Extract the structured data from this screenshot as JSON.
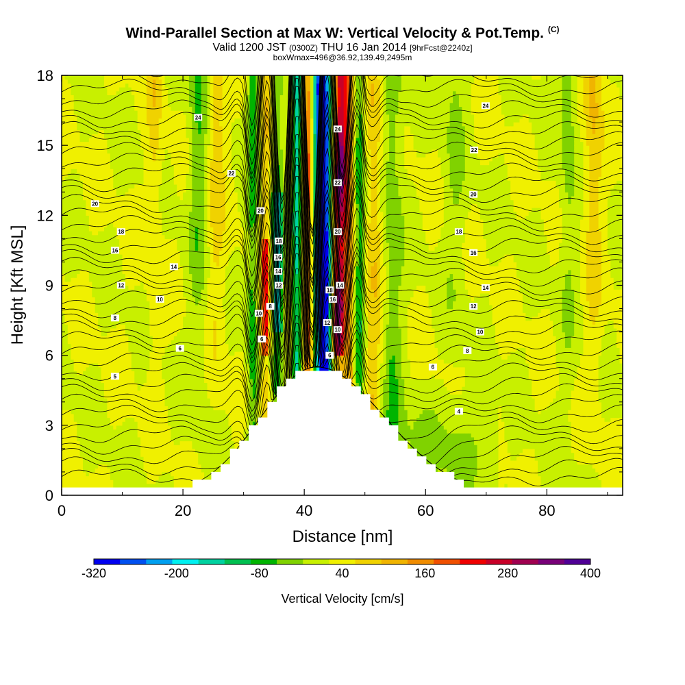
{
  "chart_data": {
    "type": "heatmap",
    "title": "Wind-Parallel Section at Max W: Vertical Velocity & Pot.Temp.",
    "title_mark": "(C)",
    "subtitle_main": "Valid 1200 JST",
    "subtitle_utc": "(0300Z)",
    "subtitle_date": "THU 16 Jan 2014",
    "subtitle_fcst": "[9hrFcst@2240z]",
    "subtitle2": "boxWmax=496@36.92,139.49,2495m",
    "xlabel": "Distance [nm]",
    "ylabel": "Height [Kft MSL]",
    "xlim": [
      0,
      92.5
    ],
    "ylim": [
      0,
      18
    ],
    "xticks": [
      0,
      20,
      40,
      60,
      80
    ],
    "yticks": [
      0,
      3,
      6,
      9,
      12,
      15,
      18
    ],
    "colorbar": {
      "label": "Vertical Velocity [cm/s]",
      "tick_labels": [
        "-320",
        "-200",
        "-80",
        "40",
        "160",
        "280",
        "400"
      ],
      "tick_values": [
        -320,
        -200,
        -80,
        40,
        160,
        280,
        400
      ],
      "range": [
        -320,
        400
      ],
      "colors": [
        "#0000f0",
        "#0050f0",
        "#00a0f0",
        "#00f0f0",
        "#00d2a0",
        "#00c050",
        "#00b400",
        "#80d200",
        "#c8f000",
        "#f0f000",
        "#f0d200",
        "#f0b400",
        "#f08c00",
        "#f05000",
        "#f00000",
        "#c80028",
        "#a00050",
        "#780078",
        "#500096"
      ]
    },
    "terrain_peak": {
      "x": 42,
      "height_kft": 5.5
    },
    "contour_labels": [
      {
        "x": 5.5,
        "y": 12.5,
        "t": "20"
      },
      {
        "x": 9.8,
        "y": 11.3,
        "t": "18"
      },
      {
        "x": 8.8,
        "y": 10.5,
        "t": "16"
      },
      {
        "x": 18.5,
        "y": 9.8,
        "t": "14"
      },
      {
        "x": 9.8,
        "y": 9.0,
        "t": "12"
      },
      {
        "x": 16.2,
        "y": 8.4,
        "t": "10"
      },
      {
        "x": 8.8,
        "y": 7.6,
        "t": "8"
      },
      {
        "x": 19.5,
        "y": 6.3,
        "t": "6"
      },
      {
        "x": 8.8,
        "y": 5.1,
        "t": "5"
      },
      {
        "x": 22.5,
        "y": 16.2,
        "t": "24"
      },
      {
        "x": 28.0,
        "y": 13.8,
        "t": "22"
      },
      {
        "x": 32.8,
        "y": 12.2,
        "t": "20"
      },
      {
        "x": 35.8,
        "y": 10.9,
        "t": "18"
      },
      {
        "x": 35.7,
        "y": 10.2,
        "t": "16"
      },
      {
        "x": 35.7,
        "y": 9.6,
        "t": "14"
      },
      {
        "x": 35.8,
        "y": 9.0,
        "t": "12"
      },
      {
        "x": 32.5,
        "y": 7.8,
        "t": "10"
      },
      {
        "x": 34.4,
        "y": 8.1,
        "t": "8"
      },
      {
        "x": 33.0,
        "y": 6.7,
        "t": "6"
      },
      {
        "x": 45.5,
        "y": 15.7,
        "t": "24"
      },
      {
        "x": 45.5,
        "y": 13.4,
        "t": "22"
      },
      {
        "x": 45.5,
        "y": 11.3,
        "t": "20"
      },
      {
        "x": 44.2,
        "y": 8.8,
        "t": "18"
      },
      {
        "x": 44.7,
        "y": 8.4,
        "t": "16"
      },
      {
        "x": 45.9,
        "y": 9.0,
        "t": "14"
      },
      {
        "x": 43.8,
        "y": 7.4,
        "t": "12"
      },
      {
        "x": 45.5,
        "y": 7.1,
        "t": "10"
      },
      {
        "x": 44.2,
        "y": 6.0,
        "t": "6"
      },
      {
        "x": 69.9,
        "y": 16.7,
        "t": "24"
      },
      {
        "x": 68.0,
        "y": 14.8,
        "t": "22"
      },
      {
        "x": 67.9,
        "y": 12.9,
        "t": "20"
      },
      {
        "x": 65.5,
        "y": 11.3,
        "t": "18"
      },
      {
        "x": 67.9,
        "y": 10.4,
        "t": "16"
      },
      {
        "x": 69.9,
        "y": 8.9,
        "t": "14"
      },
      {
        "x": 67.9,
        "y": 8.1,
        "t": "12"
      },
      {
        "x": 69.0,
        "y": 7.0,
        "t": "10"
      },
      {
        "x": 66.9,
        "y": 6.2,
        "t": "8"
      },
      {
        "x": 61.2,
        "y": 5.5,
        "t": "6"
      },
      {
        "x": 65.5,
        "y": 3.6,
        "t": "4"
      }
    ]
  }
}
